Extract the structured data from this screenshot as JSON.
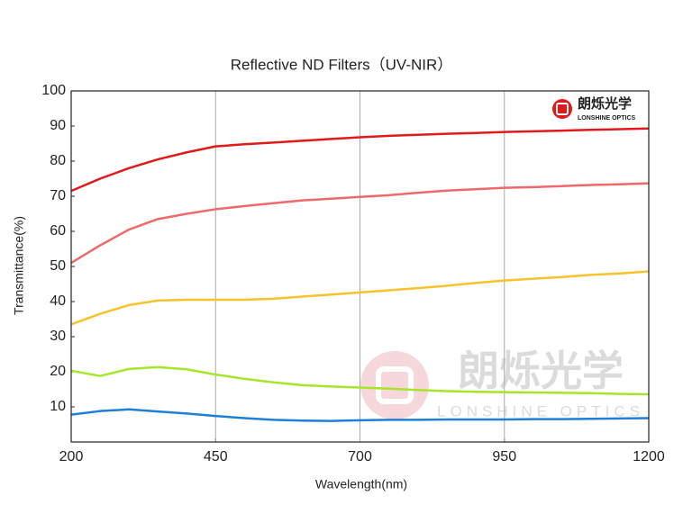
{
  "chart_data": {
    "type": "line",
    "title": "Reflective ND Filters（UV-NIR）",
    "x_label": "Wavelength(nm)",
    "y_label": "Transmittance(%)",
    "logo": {
      "name": "朗烁光学",
      "subtitle": "LONSHINE OPTICS"
    },
    "x": [
      200,
      250,
      300,
      350,
      400,
      450,
      500,
      550,
      600,
      650,
      700,
      750,
      800,
      850,
      900,
      950,
      1000,
      1050,
      1100,
      1150,
      1200
    ],
    "series": [
      {
        "color": "#e0191b",
        "values": [
          71.5,
          75,
          78,
          80.5,
          82.5,
          84.2,
          84.8,
          85.3,
          85.8,
          86.3,
          86.8,
          87.2,
          87.5,
          87.8,
          88,
          88.3,
          88.5,
          88.7,
          88.9,
          89.1,
          89.3
        ]
      },
      {
        "color": "#ec6a6a",
        "values": [
          51,
          56,
          60.5,
          63.5,
          65,
          66.3,
          67.2,
          68,
          68.8,
          69.3,
          69.8,
          70.3,
          71,
          71.6,
          72,
          72.4,
          72.6,
          72.9,
          73.2,
          73.4,
          73.7
        ]
      },
      {
        "color": "#f5c32c",
        "values": [
          33.5,
          36.5,
          39,
          40.3,
          40.5,
          40.5,
          40.5,
          40.8,
          41.4,
          42,
          42.6,
          43.2,
          43.8,
          44.5,
          45.3,
          46,
          46.5,
          47,
          47.6,
          48,
          48.6
        ]
      },
      {
        "color": "#a6e62a",
        "values": [
          20.3,
          18.8,
          20.8,
          21.3,
          20.7,
          19.2,
          18,
          17,
          16.2,
          15.8,
          15.5,
          15.2,
          14.8,
          14.5,
          14.3,
          14.2,
          14.1,
          14,
          13.9,
          13.7,
          13.6
        ]
      },
      {
        "color": "#1e7fd6",
        "values": [
          7.8,
          8.8,
          9.3,
          8.7,
          8.1,
          7.4,
          6.8,
          6.3,
          6.1,
          6,
          6.2,
          6.3,
          6.3,
          6.4,
          6.4,
          6.4,
          6.5,
          6.5,
          6.6,
          6.7,
          6.8
        ]
      }
    ],
    "xlim": [
      200,
      1200
    ],
    "xticks": [
      200,
      450,
      700,
      950,
      1200
    ],
    "ylim": [
      0,
      100
    ],
    "yticks": [
      10,
      20,
      30,
      40,
      50,
      60,
      70,
      80,
      90,
      100
    ],
    "grid": "x"
  }
}
